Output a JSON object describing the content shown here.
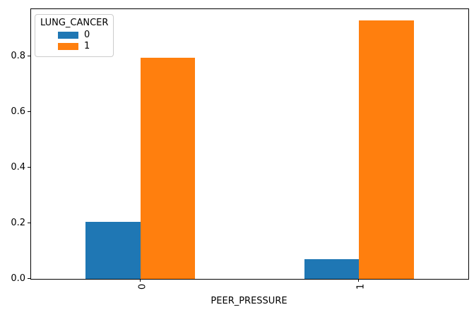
{
  "figure": {
    "background": "#ffffff",
    "spine_color": "#000000",
    "text_color": "#000000"
  },
  "chart_data": {
    "type": "bar",
    "title": "",
    "xlabel": "PEER_PRESSURE",
    "ylabel": "",
    "categories": [
      "0",
      "1"
    ],
    "x_positions": [
      0,
      1
    ],
    "series": [
      {
        "name": "0",
        "color": "#1f77b4",
        "values": [
          0.205,
          0.071
        ]
      },
      {
        "name": "1",
        "color": "#ff7f0e",
        "values": [
          0.795,
          0.929
        ]
      }
    ],
    "bar_width": 0.25,
    "xlim": [
      -0.5,
      1.5
    ],
    "ylim": [
      0,
      0.97
    ],
    "yticks": [
      "0.0",
      "0.2",
      "0.4",
      "0.6",
      "0.8"
    ],
    "ytick_values": [
      0.0,
      0.2,
      0.4,
      0.6,
      0.8
    ],
    "grid": false,
    "legend": {
      "title": "LUNG_CANCER",
      "position": "upper left",
      "entries": [
        {
          "label": "0",
          "color": "#1f77b4"
        },
        {
          "label": "1",
          "color": "#ff7f0e"
        }
      ]
    }
  }
}
